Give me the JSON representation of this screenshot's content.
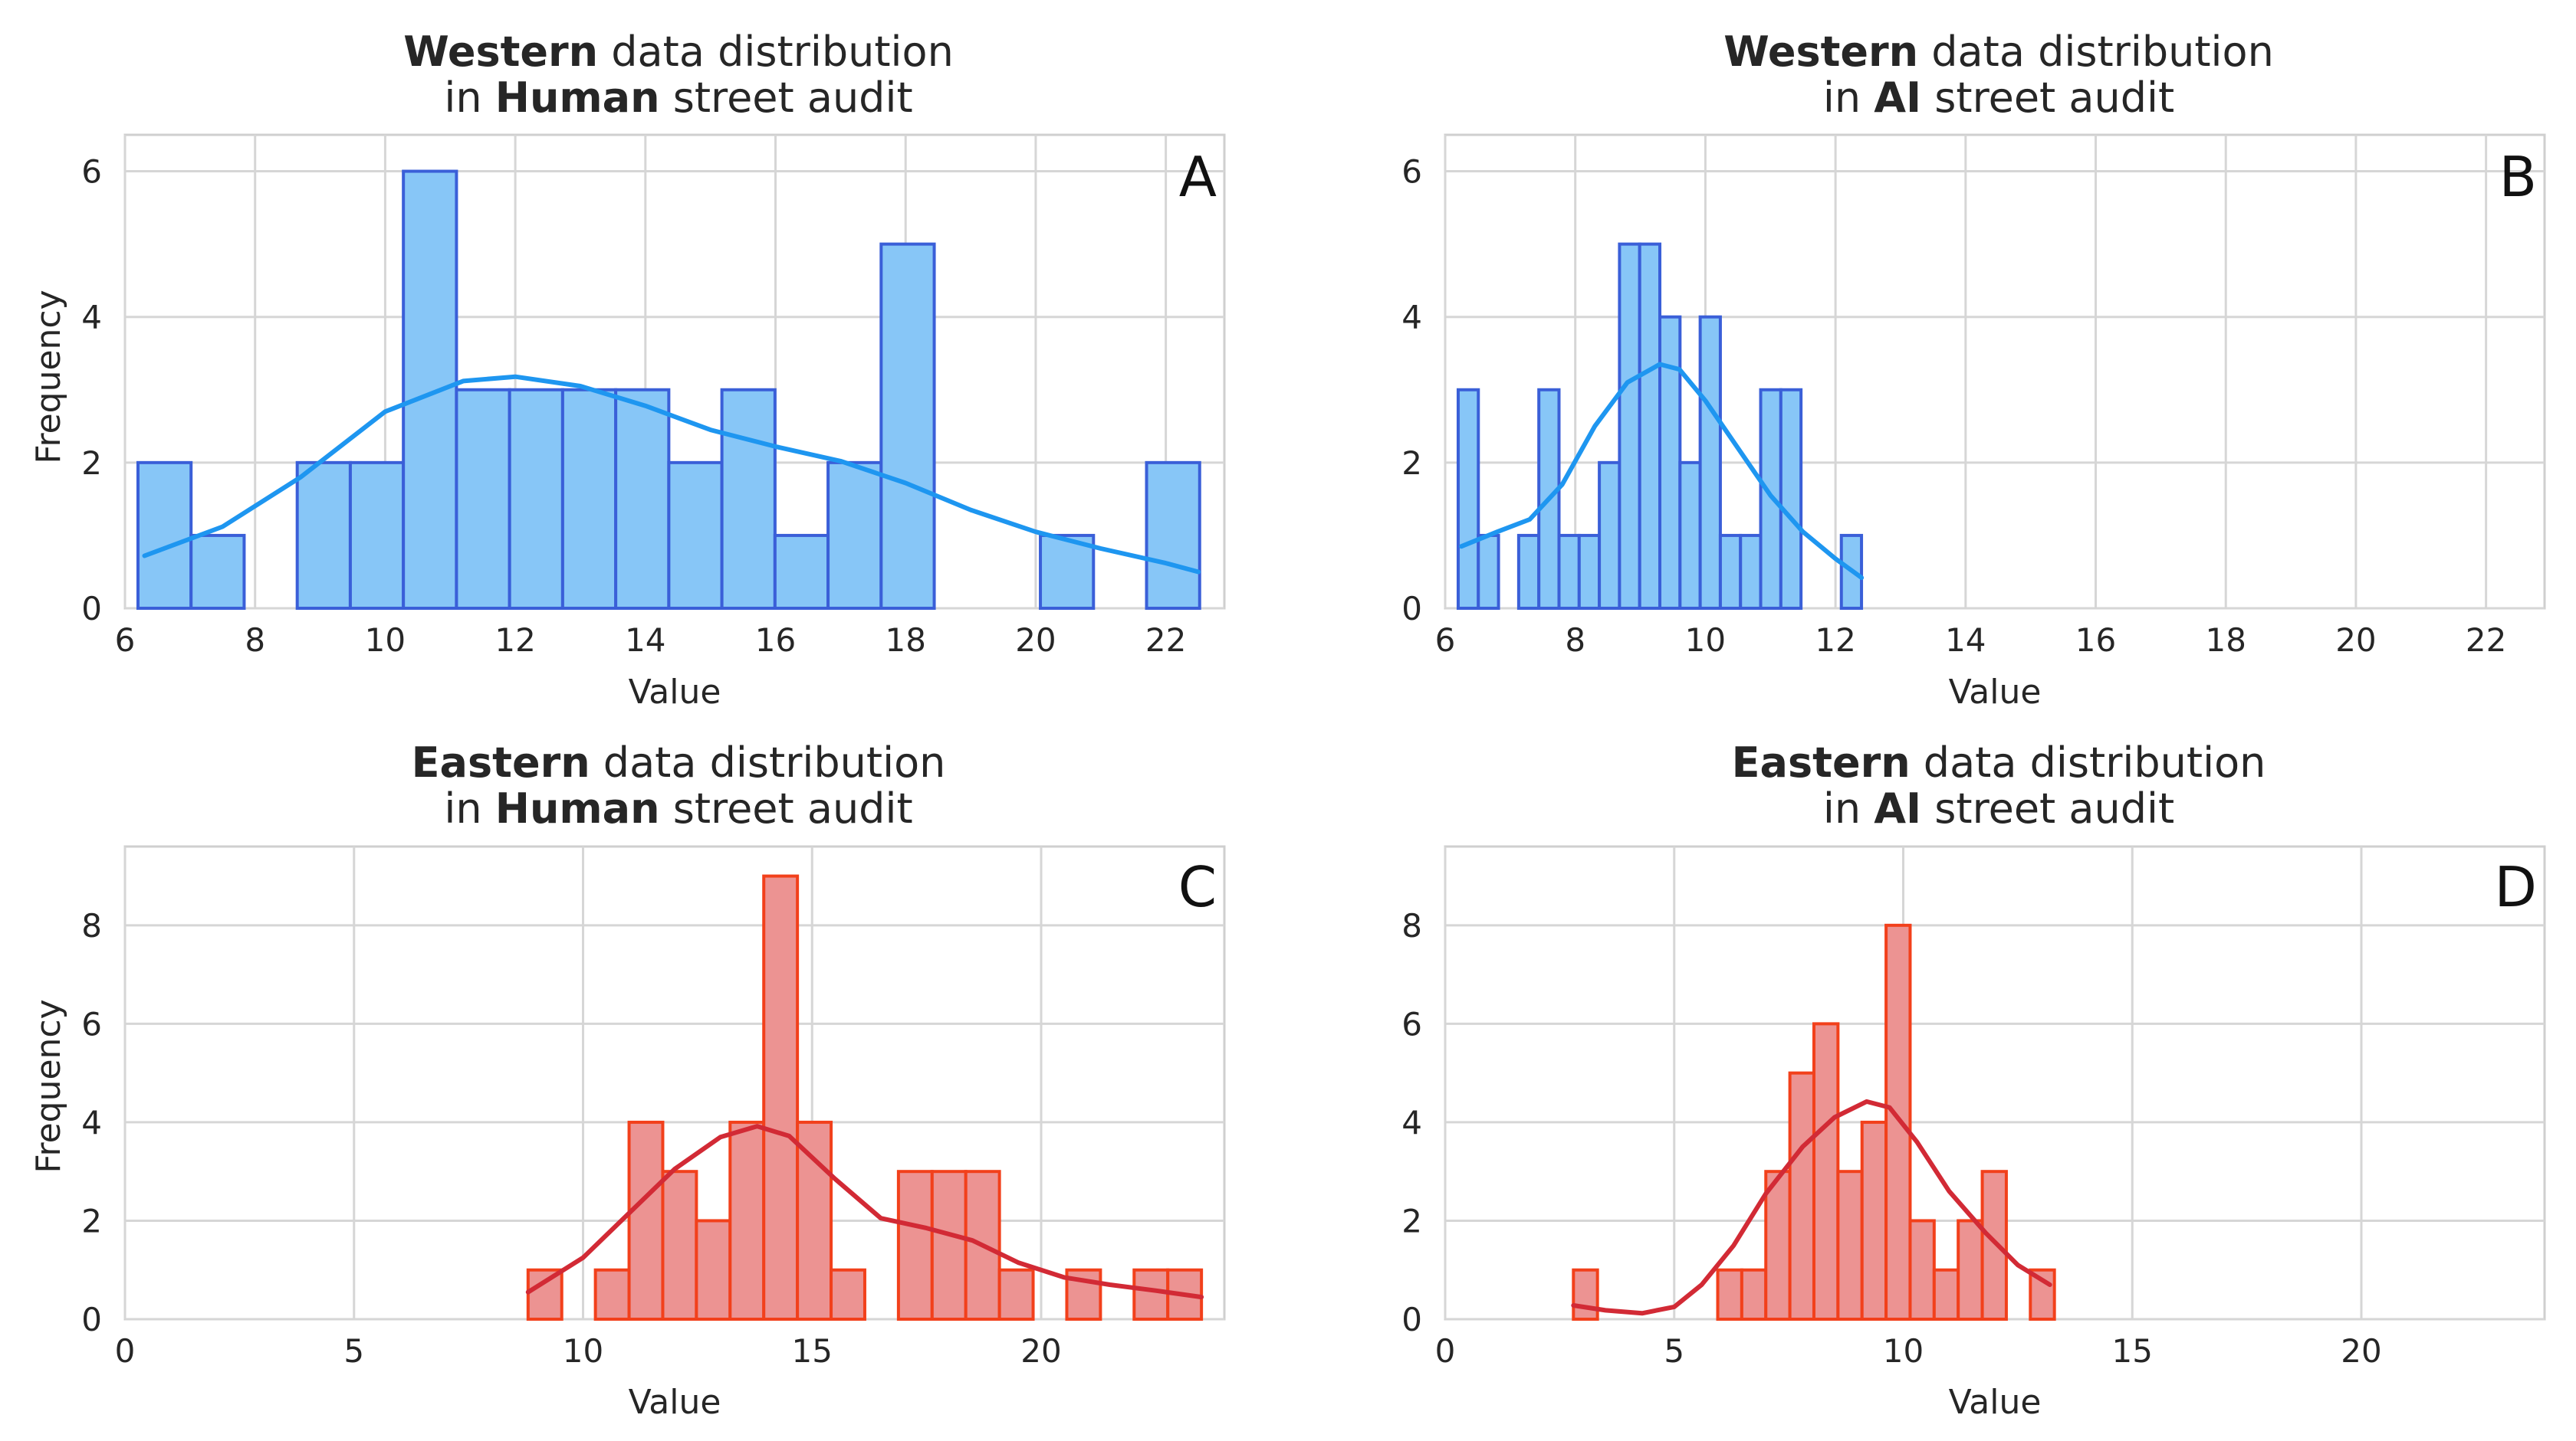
{
  "figure": {
    "panels": [
      {
        "id": "A",
        "title_line1_bold": "Western",
        "title_line1_rest": " data distribution",
        "title_line2_pre": "in ",
        "title_line2_bold": "Human",
        "title_line2_rest": " street audit",
        "letter": "A",
        "xlabel": "Value",
        "ylabel": "Frequency"
      },
      {
        "id": "B",
        "title_line1_bold": "Western",
        "title_line1_rest": " data distribution",
        "title_line2_pre": "in ",
        "title_line2_bold": "AI",
        "title_line2_rest": " street audit",
        "letter": "B",
        "xlabel": "Value",
        "ylabel": ""
      },
      {
        "id": "C",
        "title_line1_bold": "Eastern",
        "title_line1_rest": " data distribution",
        "title_line2_pre": "in ",
        "title_line2_bold": "Human",
        "title_line2_rest": " street audit",
        "letter": "C",
        "xlabel": "Value",
        "ylabel": "Frequency"
      },
      {
        "id": "D",
        "title_line1_bold": "Eastern",
        "title_line1_rest": " data distribution",
        "title_line2_pre": "in ",
        "title_line2_bold": "AI",
        "title_line2_rest": " street audit",
        "letter": "D",
        "xlabel": "Value",
        "ylabel": ""
      }
    ]
  },
  "chart_data": [
    {
      "type": "bar",
      "panel": "A",
      "title": "Western data distribution in Human street audit",
      "xlabel": "Value",
      "ylabel": "Frequency",
      "xlim": [
        6,
        22.9
      ],
      "ylim": [
        0,
        6.5
      ],
      "xticks": [
        6,
        8,
        10,
        12,
        14,
        16,
        18,
        20,
        22
      ],
      "yticks": [
        0,
        2,
        4,
        6
      ],
      "bin_edges": [
        6.2,
        7.016,
        7.832,
        8.648,
        9.464,
        10.28,
        11.096,
        11.912,
        12.728,
        13.544,
        14.36,
        15.176,
        15.992,
        16.808,
        17.624,
        18.44,
        19.256,
        20.072,
        20.888,
        21.704,
        22.52
      ],
      "counts": [
        2,
        1,
        0,
        2,
        2,
        6,
        3,
        3,
        3,
        3,
        2,
        3,
        1,
        2,
        5,
        0,
        0,
        1,
        0,
        2
      ],
      "kde": {
        "x": [
          6.3,
          7.5,
          8.7,
          10,
          11.2,
          12,
          13,
          14,
          15,
          16,
          17,
          18,
          19,
          20,
          21,
          22,
          22.5
        ],
        "y": [
          0.72,
          1.12,
          1.8,
          2.7,
          3.12,
          3.18,
          3.05,
          2.78,
          2.45,
          2.22,
          2.02,
          1.72,
          1.35,
          1.05,
          0.82,
          0.62,
          0.5
        ]
      },
      "fill_color": "#87c6f7",
      "edge_color": "#3a5fd8",
      "kde_color": "#1e96f0",
      "annotations": [
        "A"
      ]
    },
    {
      "type": "bar",
      "panel": "B",
      "title": "Western data distribution in AI street audit",
      "xlabel": "Value",
      "ylabel": "",
      "xlim": [
        6,
        22.9
      ],
      "ylim": [
        0,
        6.5
      ],
      "xticks": [
        6,
        8,
        10,
        12,
        14,
        16,
        18,
        20,
        22
      ],
      "yticks": [
        0,
        2,
        4,
        6
      ],
      "bin_edges": [
        6.2,
        6.51,
        6.82,
        7.13,
        7.44,
        7.75,
        8.06,
        8.37,
        8.68,
        8.99,
        9.3,
        9.61,
        9.92,
        10.23,
        10.54,
        10.85,
        11.16,
        11.47,
        11.78,
        12.09,
        12.4
      ],
      "counts": [
        3,
        1,
        0,
        1,
        3,
        1,
        1,
        2,
        5,
        5,
        4,
        2,
        4,
        1,
        1,
        3,
        3,
        0,
        0,
        1
      ],
      "kde": {
        "x": [
          6.25,
          6.8,
          7.3,
          7.8,
          8.3,
          8.8,
          9.3,
          9.6,
          10,
          10.5,
          11,
          11.5,
          12,
          12.4
        ],
        "y": [
          0.85,
          1.05,
          1.22,
          1.7,
          2.5,
          3.1,
          3.35,
          3.28,
          2.85,
          2.2,
          1.55,
          1.05,
          0.68,
          0.42
        ]
      },
      "fill_color": "#87c6f7",
      "edge_color": "#3a5fd8",
      "kde_color": "#1e96f0",
      "annotations": [
        "B"
      ]
    },
    {
      "type": "bar",
      "panel": "C",
      "title": "Eastern data distribution in Human street audit",
      "xlabel": "Value",
      "ylabel": "Frequency",
      "xlim": [
        0,
        24
      ],
      "ylim": [
        0,
        9.6
      ],
      "xticks": [
        0,
        5,
        10,
        15,
        20
      ],
      "yticks": [
        0,
        2,
        4,
        6,
        8
      ],
      "bin_edges": [
        8.8,
        9.535,
        10.27,
        11.005,
        11.74,
        12.475,
        13.21,
        13.945,
        14.68,
        15.415,
        16.15,
        16.885,
        17.62,
        18.355,
        19.09,
        19.825,
        20.56,
        21.295,
        22.03,
        22.765,
        23.5
      ],
      "counts": [
        1,
        0,
        1,
        4,
        3,
        2,
        4,
        9,
        4,
        1,
        0,
        3,
        3,
        3,
        1,
        0,
        1,
        0,
        1,
        1
      ],
      "kde": {
        "x": [
          8.8,
          10,
          11,
          12,
          13,
          13.8,
          14.5,
          15.5,
          16.5,
          17.5,
          18.5,
          19.5,
          20.5,
          21.5,
          22.5,
          23.5
        ],
        "y": [
          0.55,
          1.25,
          2.15,
          3.05,
          3.7,
          3.92,
          3.72,
          2.85,
          2.05,
          1.85,
          1.6,
          1.15,
          0.85,
          0.7,
          0.58,
          0.45
        ]
      },
      "fill_color": "#ec9392",
      "edge_color": "#f2401b",
      "kde_color": "#d22a35",
      "annotations": [
        "C"
      ]
    },
    {
      "type": "bar",
      "panel": "D",
      "title": "Eastern data distribution in AI street audit",
      "xlabel": "Value",
      "ylabel": "",
      "xlim": [
        0,
        24
      ],
      "ylim": [
        0,
        9.6
      ],
      "xticks": [
        0,
        5,
        10,
        15,
        20
      ],
      "yticks": [
        0,
        2,
        4,
        6,
        8
      ],
      "bin_edges": [
        2.8,
        3.325,
        3.85,
        4.375,
        4.9,
        5.425,
        5.95,
        6.475,
        7.0,
        7.525,
        8.05,
        8.575,
        9.1,
        9.625,
        10.15,
        10.675,
        11.2,
        11.725,
        12.25,
        12.775,
        13.3
      ],
      "counts": [
        1,
        0,
        0,
        0,
        0,
        0,
        1,
        1,
        3,
        5,
        6,
        3,
        4,
        8,
        2,
        1,
        2,
        3,
        0,
        1
      ],
      "kde": {
        "x": [
          2.8,
          3.5,
          4.3,
          5,
          5.6,
          6.3,
          7,
          7.8,
          8.5,
          9.2,
          9.7,
          10.3,
          11,
          11.8,
          12.5,
          13.2
        ],
        "y": [
          0.28,
          0.18,
          0.12,
          0.25,
          0.7,
          1.5,
          2.55,
          3.5,
          4.1,
          4.42,
          4.3,
          3.6,
          2.6,
          1.75,
          1.1,
          0.7
        ]
      },
      "fill_color": "#ec9392",
      "edge_color": "#f2401b",
      "kde_color": "#d22a35",
      "annotations": [
        "D"
      ]
    }
  ]
}
